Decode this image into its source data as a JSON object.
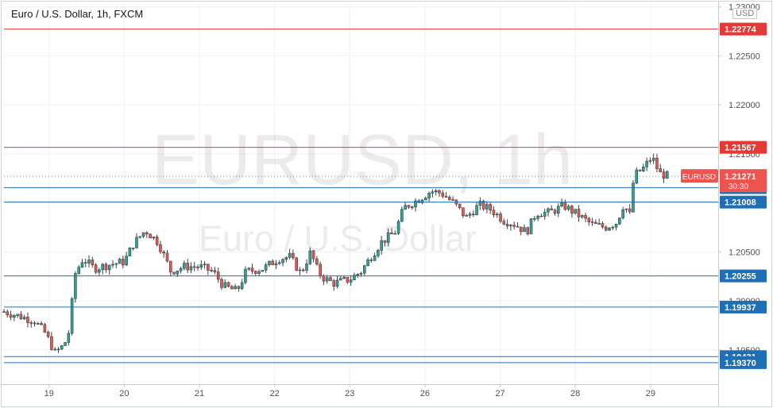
{
  "legend": {
    "title": "Euro / U.S. Dollar, 1h, FXCM"
  },
  "currency_badge": "USD",
  "watermark": {
    "symbol": "EURUSD, 1h",
    "description": "Euro / U.S. Dollar"
  },
  "price_tag": {
    "symbol": "EURUSD",
    "price": "1.21271",
    "countdown": "30:30"
  },
  "colors": {
    "up": "#26a69a",
    "down": "#ef5350",
    "resistance": "#e53935",
    "support": "#1e6fb5",
    "price": "#ef5350"
  },
  "chart_data": {
    "type": "candlestick",
    "timeframe": "1h",
    "ylim": [
      1.1915,
      1.2303
    ],
    "y_ticks": [
      "1.19500",
      "1.20000",
      "1.20500",
      "1.21000",
      "1.21500",
      "1.22000",
      "1.22500",
      "1.23000"
    ],
    "x_ticks": [
      {
        "label": "19",
        "day": 1
      },
      {
        "label": "20",
        "day": 2
      },
      {
        "label": "21",
        "day": 3
      },
      {
        "label": "22",
        "day": 4
      },
      {
        "label": "23",
        "day": 5
      },
      {
        "label": "26",
        "day": 6
      },
      {
        "label": "27",
        "day": 7
      },
      {
        "label": "28",
        "day": 8
      },
      {
        "label": "29",
        "day": 9
      }
    ],
    "x_range_days": [
      0.4,
      9.9
    ],
    "horizontal_levels": [
      {
        "value": 1.22774,
        "label": "1.22774",
        "kind": "resistance"
      },
      {
        "value": 1.21567,
        "label": "1.21567",
        "kind": "resistance"
      },
      {
        "value": 1.21156,
        "label": "1.21156",
        "kind": "support"
      },
      {
        "value": 1.21008,
        "label": "1.21008",
        "kind": "support"
      },
      {
        "value": 1.20255,
        "label": "1.20255",
        "kind": "support"
      },
      {
        "value": 1.19937,
        "label": "1.19937",
        "kind": "support"
      },
      {
        "value": 1.19431,
        "label": "1.19431",
        "kind": "support"
      },
      {
        "value": 1.1937,
        "label": "1.19370",
        "kind": "support"
      }
    ],
    "last_price": 1.21271,
    "path_points": [
      [
        0.4,
        1.1989
      ],
      [
        0.8,
        1.198
      ],
      [
        0.95,
        1.1967
      ],
      [
        1.08,
        1.1947
      ],
      [
        1.2,
        1.1955
      ],
      [
        1.28,
        1.1972
      ],
      [
        1.33,
        1.2025
      ],
      [
        1.45,
        1.2043
      ],
      [
        1.6,
        1.2033
      ],
      [
        1.8,
        1.2037
      ],
      [
        2.0,
        1.204
      ],
      [
        2.12,
        1.2058
      ],
      [
        2.28,
        1.2072
      ],
      [
        2.45,
        1.206
      ],
      [
        2.62,
        1.203
      ],
      [
        2.8,
        1.2035
      ],
      [
        3.0,
        1.2035
      ],
      [
        3.18,
        1.203
      ],
      [
        3.32,
        1.2015
      ],
      [
        3.5,
        1.201
      ],
      [
        3.62,
        1.203
      ],
      [
        3.85,
        1.2033
      ],
      [
        4.05,
        1.2043
      ],
      [
        4.2,
        1.2045
      ],
      [
        4.35,
        1.2028
      ],
      [
        4.48,
        1.205
      ],
      [
        4.55,
        1.2035
      ],
      [
        4.62,
        1.2025
      ],
      [
        4.78,
        1.2018
      ],
      [
        5.0,
        1.2022
      ],
      [
        5.15,
        1.203
      ],
      [
        5.28,
        1.2045
      ],
      [
        5.42,
        1.206
      ],
      [
        5.6,
        1.207
      ],
      [
        5.72,
        1.2095
      ],
      [
        5.9,
        1.2103
      ],
      [
        6.08,
        1.2112
      ],
      [
        6.22,
        1.211
      ],
      [
        6.38,
        1.21
      ],
      [
        6.55,
        1.2085
      ],
      [
        6.72,
        1.2098
      ],
      [
        6.88,
        1.2093
      ],
      [
        7.05,
        1.2082
      ],
      [
        7.2,
        1.2078
      ],
      [
        7.35,
        1.207
      ],
      [
        7.48,
        1.209
      ],
      [
        7.65,
        1.209
      ],
      [
        7.85,
        1.2097
      ],
      [
        8.05,
        1.2087
      ],
      [
        8.22,
        1.2078
      ],
      [
        8.4,
        1.2075
      ],
      [
        8.55,
        1.208
      ],
      [
        8.65,
        1.21
      ],
      [
        8.72,
        1.2085
      ],
      [
        8.78,
        1.2128
      ],
      [
        8.9,
        1.2135
      ],
      [
        9.02,
        1.2147
      ],
      [
        9.12,
        1.213
      ],
      [
        9.25,
        1.2127
      ]
    ]
  }
}
